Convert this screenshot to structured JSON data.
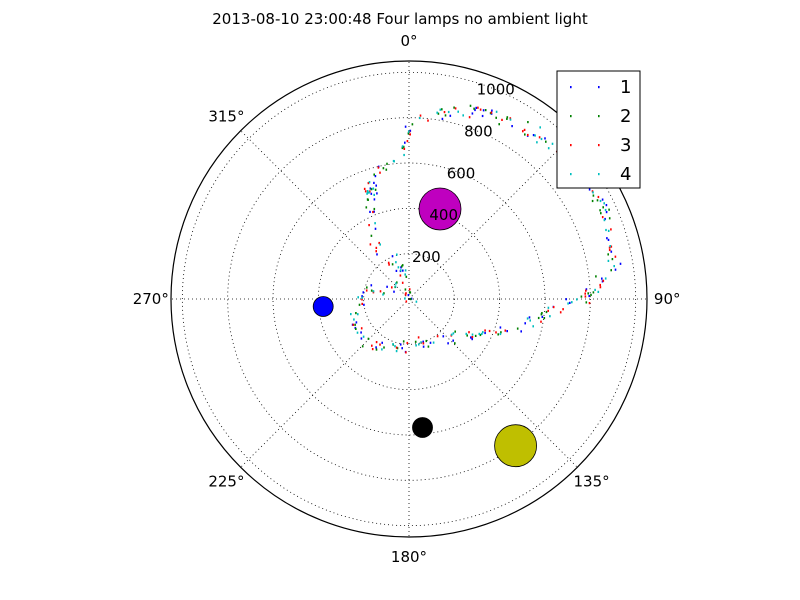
{
  "chart_data": {
    "type": "scatter",
    "projection": "polar",
    "title": "2013-08-10 23:00:48 Four lamps no ambient light",
    "angle_zero": "top",
    "angle_direction": "clockwise",
    "angle_ticks": [
      {
        "deg": 0,
        "label": "0°"
      },
      {
        "deg": 45,
        "label": ""
      },
      {
        "deg": 90,
        "label": "90°"
      },
      {
        "deg": 135,
        "label": "135°"
      },
      {
        "deg": 180,
        "label": "180°"
      },
      {
        "deg": 225,
        "label": "225°"
      },
      {
        "deg": 270,
        "label": "270°"
      },
      {
        "deg": 315,
        "label": "315°"
      }
    ],
    "radial_ticks": [
      {
        "value": 200,
        "label": "200"
      },
      {
        "value": 400,
        "label": "400"
      },
      {
        "value": 600,
        "label": "600"
      },
      {
        "value": 800,
        "label": "800"
      },
      {
        "value": 1000,
        "label": "1000"
      }
    ],
    "rlim": [
      0,
      1050
    ],
    "radial_label_angle_deg": 22.5,
    "grid": true,
    "legend_position": "top-right",
    "series": [
      {
        "name": "1",
        "color": "#0000ff",
        "key": "1"
      },
      {
        "name": "2",
        "color": "#008000",
        "key": "2"
      },
      {
        "name": "3",
        "color": "#ff0000",
        "key": "3"
      },
      {
        "name": "4",
        "color": "#00bfbf",
        "key": "4"
      }
    ],
    "path_anchors": [
      [
        340,
        15
      ],
      [
        -25,
        20
      ],
      [
        -15,
        150
      ],
      [
        -35,
        260
      ],
      [
        -20,
        530
      ],
      [
        -5,
        650
      ],
      [
        2,
        800
      ],
      [
        20,
        900
      ],
      [
        45,
        950
      ],
      [
        65,
        950
      ],
      [
        80,
        920
      ],
      [
        88,
        800
      ],
      [
        92,
        680
      ],
      [
        105,
        480
      ],
      [
        120,
        300
      ],
      [
        145,
        220
      ],
      [
        165,
        190
      ],
      [
        185,
        200
      ],
      [
        200,
        230
      ],
      [
        220,
        260
      ],
      [
        240,
        280
      ],
      [
        265,
        230
      ],
      [
        285,
        180
      ],
      [
        300,
        120
      ],
      [
        320,
        40
      ]
    ],
    "lamps": [
      {
        "name": "magenta-lamp",
        "theta_deg": 19,
        "r": 420,
        "color": "#bf00bf",
        "size": "large"
      },
      {
        "name": "yellow-lamp",
        "theta_deg": 144,
        "r": 800,
        "color": "#bfbf00",
        "size": "large"
      },
      {
        "name": "black-lamp",
        "theta_deg": 174,
        "r": 570,
        "color": "#000000",
        "size": "small"
      },
      {
        "name": "blue-lamp",
        "theta_deg": 265,
        "r": 380,
        "color": "#0000ff",
        "size": "small"
      }
    ]
  }
}
